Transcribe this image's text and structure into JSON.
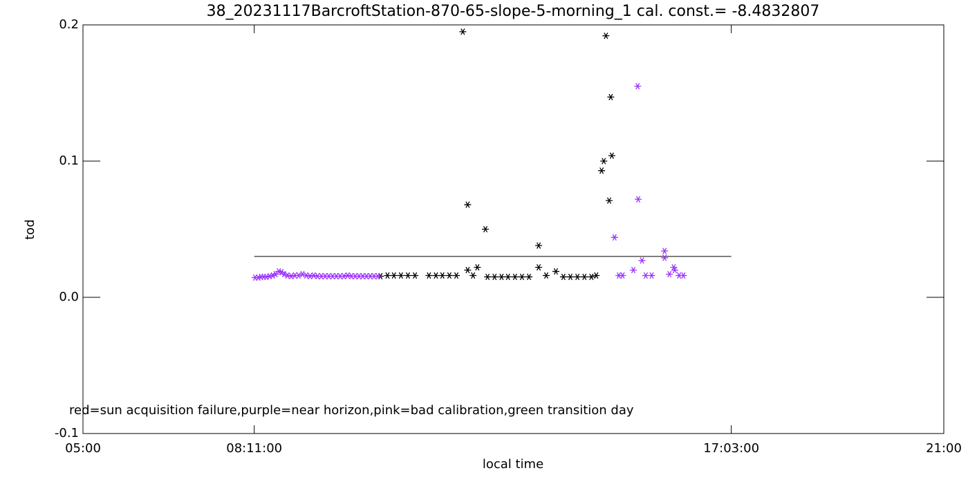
{
  "chart_data": {
    "type": "scatter",
    "title": "38_20231117BarcroftStation-870-65-slope-5-morning_1 cal. const.= -8.4832807",
    "x_label": "local time",
    "y_label": "tod",
    "annotation": "red=sun acquisition failure,purple=near horizon,pink=bad calibration,green transition day",
    "xlim": [
      5,
      21
    ],
    "ylim": [
      -0.1,
      0.2
    ],
    "xticks": [
      {
        "value": 5,
        "label": "05:00"
      },
      {
        "value": 8.1833,
        "label": "08:11:00"
      },
      {
        "value": 17.05,
        "label": "17:03:00"
      },
      {
        "value": 21,
        "label": "21:00"
      }
    ],
    "yticks": [
      -0.1,
      {
        "value": 0,
        "label": "0.0"
      },
      0.1,
      0.2
    ],
    "threshold": {
      "x": [
        8.1833,
        17.05
      ],
      "values": [
        0.03,
        0.03
      ],
      "color": "#000000"
    },
    "series": [
      {
        "color": "#000000",
        "x": [
          10.53,
          10.66,
          10.78,
          10.91,
          11.04,
          11.17,
          11.43,
          11.56,
          11.68,
          11.81,
          11.94,
          12.06,
          12.15,
          12.15,
          12.25,
          12.33,
          12.48,
          12.52,
          12.65,
          12.78,
          12.9,
          13.03,
          13.16,
          13.29,
          13.47,
          13.47,
          13.61,
          13.79,
          13.93,
          14.06,
          14.19,
          14.32,
          14.45,
          14.54,
          14.64,
          14.68,
          14.72,
          14.78,
          14.81,
          14.83
        ],
        "values": [
          0.0155,
          0.016,
          0.016,
          0.016,
          0.016,
          0.016,
          0.016,
          0.016,
          0.016,
          0.016,
          0.016,
          0.195,
          0.068,
          0.02,
          0.016,
          0.022,
          0.05,
          0.015,
          0.015,
          0.015,
          0.015,
          0.015,
          0.015,
          0.015,
          0.038,
          0.022,
          0.016,
          0.019,
          0.015,
          0.015,
          0.015,
          0.015,
          0.015,
          0.016,
          0.093,
          0.1,
          0.192,
          0.071,
          0.147,
          0.104
        ]
      },
      {
        "color": "#9b30ff",
        "x": [
          8.2,
          8.26,
          8.31,
          8.36,
          8.41,
          8.47,
          8.53,
          8.58,
          8.64,
          8.69,
          8.74,
          8.8,
          8.87,
          8.94,
          9.01,
          9.08,
          9.15,
          9.22,
          9.29,
          9.36,
          9.43,
          9.5,
          9.57,
          9.64,
          9.71,
          9.78,
          9.85,
          9.92,
          9.99,
          10.06,
          10.13,
          10.2,
          10.27,
          10.34,
          10.41,
          10.48,
          14.88,
          14.96,
          15.03,
          15.23,
          15.31,
          15.32,
          15.39,
          15.46,
          15.57,
          15.81,
          15.81,
          15.9,
          15.98,
          16.0,
          16.08,
          16.16
        ],
        "values": [
          0.0145,
          0.0145,
          0.015,
          0.015,
          0.015,
          0.0155,
          0.016,
          0.017,
          0.019,
          0.0185,
          0.017,
          0.016,
          0.0155,
          0.016,
          0.016,
          0.017,
          0.016,
          0.0155,
          0.016,
          0.0155,
          0.0155,
          0.0155,
          0.0155,
          0.0155,
          0.0155,
          0.0155,
          0.0155,
          0.016,
          0.0155,
          0.0155,
          0.0155,
          0.0155,
          0.0155,
          0.0155,
          0.0155,
          0.0155,
          0.044,
          0.016,
          0.016,
          0.02,
          0.155,
          0.072,
          0.027,
          0.016,
          0.016,
          0.034,
          0.029,
          0.017,
          0.022,
          0.02,
          0.016,
          0.016
        ]
      }
    ]
  }
}
